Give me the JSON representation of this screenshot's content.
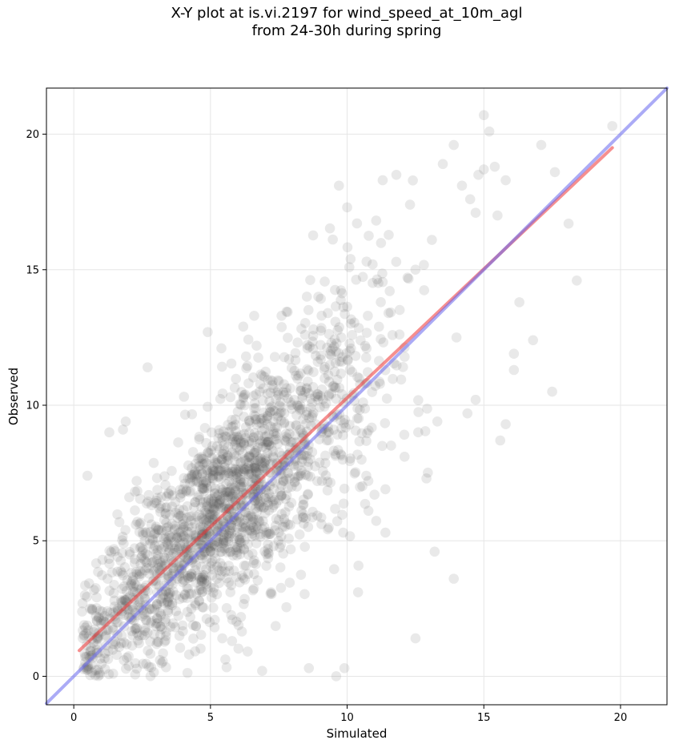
{
  "chart_data": {
    "type": "scatter",
    "title_lines": [
      "X-Y plot at is.vi.2197 for wind_speed_at_10m_agl",
      "from 24-30h during spring"
    ],
    "xlabel": "Simulated",
    "ylabel": "Observed",
    "xlim": [
      -1.0,
      21.7
    ],
    "ylim": [
      -1.05,
      21.7
    ],
    "xticks": [
      0,
      5,
      10,
      15,
      20
    ],
    "yticks": [
      0,
      5,
      10,
      15,
      20
    ],
    "grid": true,
    "point_color": "#555555",
    "point_opacity": 0.13,
    "lines": [
      {
        "kind": "fit",
        "color": "#ee3333",
        "x": [
          0.2,
          19.7
        ],
        "y": [
          0.95,
          19.5
        ]
      },
      {
        "kind": "one-to-one",
        "color": "#6666ee",
        "x": [
          -1.0,
          21.7
        ],
        "y": [
          -1.0,
          21.7
        ]
      }
    ],
    "outliers": [
      [
        0.5,
        7.4
      ],
      [
        1.3,
        9.0
      ],
      [
        1.8,
        9.1
      ],
      [
        1.9,
        9.4
      ],
      [
        2.7,
        11.4
      ],
      [
        4.9,
        12.7
      ],
      [
        5.4,
        12.1
      ],
      [
        6.2,
        12.9
      ],
      [
        6.6,
        13.3
      ],
      [
        7.6,
        13.3
      ],
      [
        9.7,
        18.1
      ],
      [
        10.0,
        17.3
      ],
      [
        11.3,
        18.3
      ],
      [
        11.8,
        18.5
      ],
      [
        12.3,
        17.4
      ],
      [
        13.1,
        16.1
      ],
      [
        13.5,
        18.9
      ],
      [
        13.9,
        19.6
      ],
      [
        14.2,
        18.1
      ],
      [
        14.5,
        17.6
      ],
      [
        14.8,
        18.5
      ],
      [
        15.0,
        20.7
      ],
      [
        15.2,
        20.1
      ],
      [
        15.0,
        18.7
      ],
      [
        15.4,
        18.8
      ],
      [
        15.8,
        18.3
      ],
      [
        14.7,
        17.1
      ],
      [
        15.5,
        17.0
      ],
      [
        17.1,
        19.6
      ],
      [
        17.6,
        18.6
      ],
      [
        19.7,
        20.3
      ],
      [
        18.1,
        16.7
      ],
      [
        18.4,
        14.6
      ],
      [
        17.5,
        10.5
      ],
      [
        15.6,
        8.7
      ],
      [
        15.8,
        9.3
      ],
      [
        16.1,
        11.3
      ],
      [
        16.1,
        11.9
      ],
      [
        16.3,
        13.8
      ],
      [
        16.8,
        12.4
      ],
      [
        14.0,
        12.5
      ],
      [
        13.2,
        4.6
      ],
      [
        13.9,
        3.6
      ],
      [
        12.5,
        1.4
      ],
      [
        12.9,
        7.3
      ],
      [
        12.6,
        9.0
      ],
      [
        13.3,
        9.4
      ],
      [
        14.4,
        9.7
      ],
      [
        14.7,
        10.2
      ],
      [
        11.4,
        5.3
      ],
      [
        10.4,
        3.1
      ],
      [
        9.9,
        0.3
      ],
      [
        8.6,
        0.3
      ],
      [
        9.6,
        0.0
      ],
      [
        11.0,
        6.7
      ],
      [
        11.4,
        6.9
      ],
      [
        12.1,
        8.1
      ],
      [
        10.7,
        7.4
      ]
    ]
  }
}
